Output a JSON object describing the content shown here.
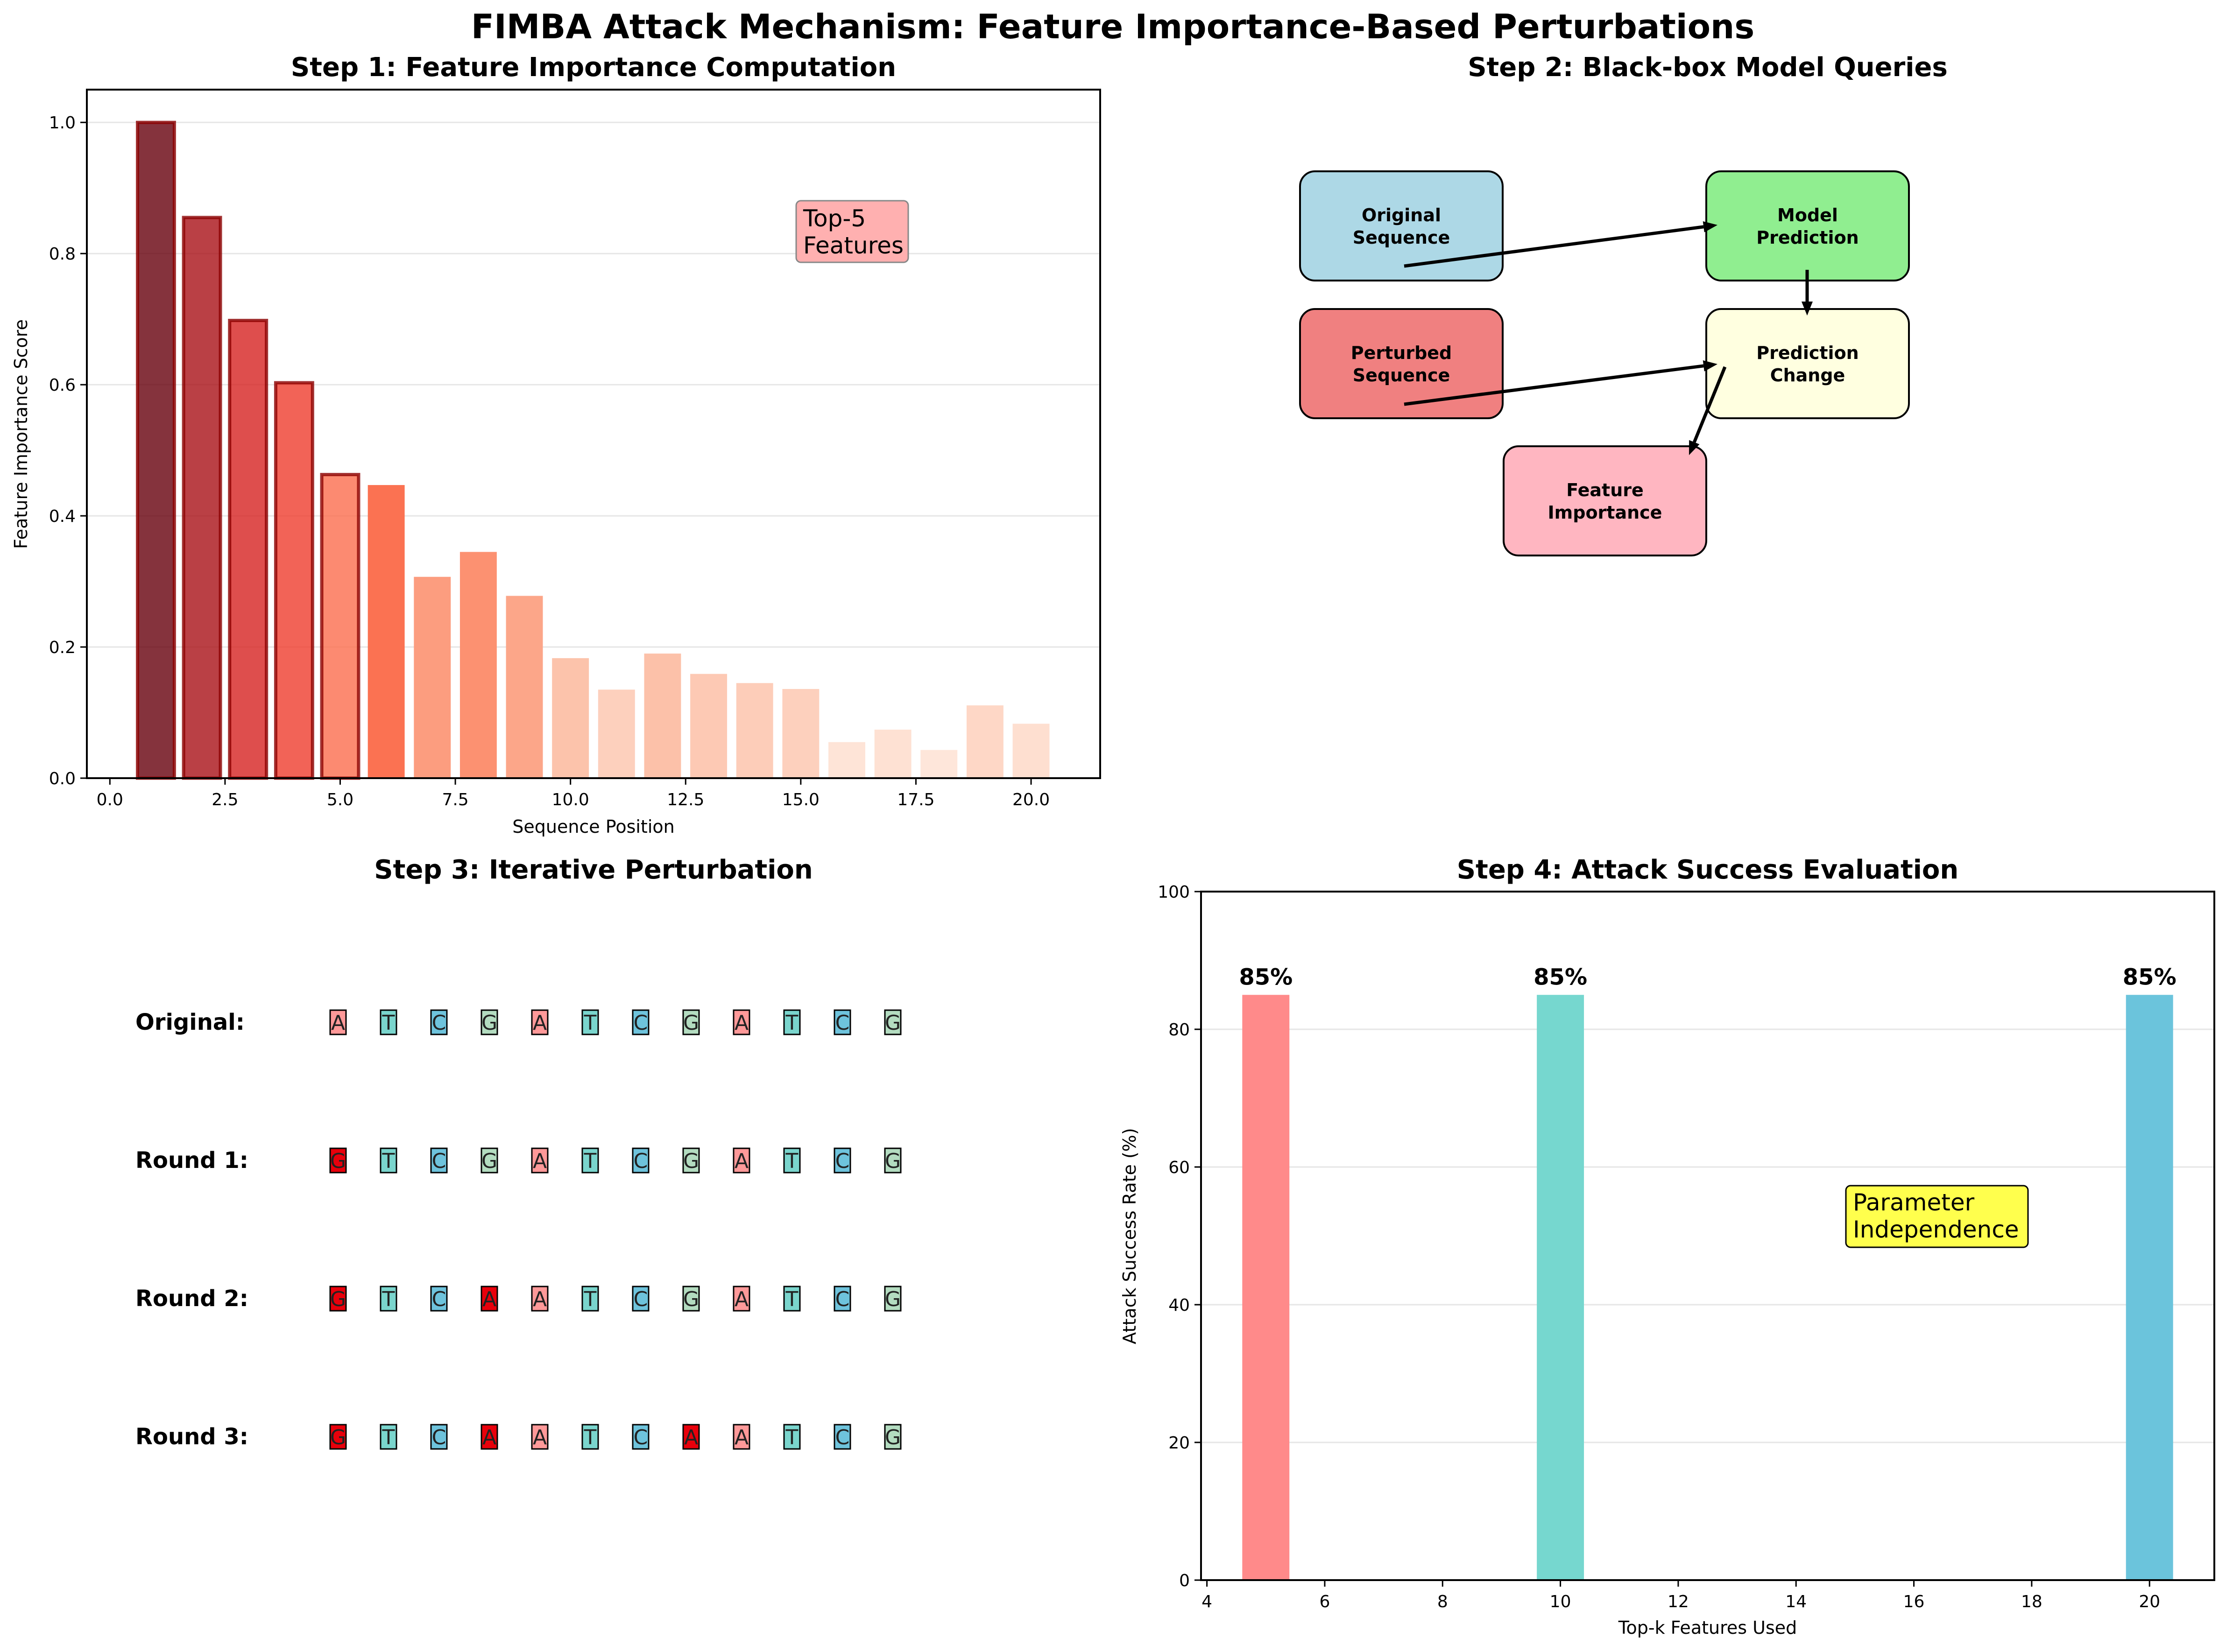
{
  "figure": {
    "title": "FIMBA Attack Mechanism: Feature Importance-Based Perturbations"
  },
  "chart_data": [
    {
      "type": "bar",
      "title": "Step 1: Feature Importance Computation",
      "xlabel": "Sequence Position",
      "ylabel": "Feature Importance Score",
      "xlim": [
        -0.5,
        21.5
      ],
      "ylim": [
        0,
        1.05
      ],
      "xticks": [
        0.0,
        2.5,
        5.0,
        7.5,
        10.0,
        12.5,
        15.0,
        17.5,
        20.0
      ],
      "xtick_labels": [
        "0.0",
        "2.5",
        "5.0",
        "7.5",
        "10.0",
        "12.5",
        "15.0",
        "17.5",
        "20.0"
      ],
      "yticks": [
        0.0,
        0.2,
        0.4,
        0.6,
        0.8,
        1.0
      ],
      "ytick_labels": [
        "0.0",
        "0.2",
        "0.4",
        "0.6",
        "0.8",
        "1.0"
      ],
      "grid": "y",
      "x": [
        1,
        2,
        3,
        4,
        5,
        6,
        7,
        8,
        9,
        10,
        11,
        12,
        13,
        14,
        15,
        16,
        17,
        18,
        19,
        20
      ],
      "values": [
        1.0,
        0.855,
        0.698,
        0.603,
        0.463,
        0.447,
        0.307,
        0.345,
        0.278,
        0.183,
        0.135,
        0.19,
        0.159,
        0.145,
        0.136,
        0.055,
        0.074,
        0.043,
        0.111,
        0.083
      ],
      "highlighted_top_k": 5,
      "colormap": "Reds",
      "annotation": "Top-5\nFeatures"
    },
    {
      "type": "diagram",
      "title": "Step 2: Black-box Model Queries",
      "nodes": [
        {
          "id": "original",
          "label": "Original\nSequence",
          "color": "#add8e6"
        },
        {
          "id": "model",
          "label": "Model\nPrediction",
          "color": "#90ee90"
        },
        {
          "id": "perturbed",
          "label": "Perturbed\nSequence",
          "color": "#f08080"
        },
        {
          "id": "change",
          "label": "Prediction\nChange",
          "color": "#ffffe0"
        },
        {
          "id": "importance",
          "label": "Feature\nImportance",
          "color": "#ffb6c1"
        }
      ],
      "edges": [
        {
          "from": "original",
          "to": "model"
        },
        {
          "from": "model",
          "to": "change"
        },
        {
          "from": "perturbed",
          "to": "change"
        },
        {
          "from": "change",
          "to": "importance"
        }
      ]
    },
    {
      "type": "sequence",
      "title": "Step 3: Iterative Perturbation",
      "base_colors": {
        "A": "#ff9999",
        "T": "#7ad5cd",
        "C": "#6ec3dc",
        "G": "#b3dcc0"
      },
      "perturbed_color": "#e8000b",
      "rows": [
        {
          "label": "Original:",
          "bases": [
            "A",
            "T",
            "C",
            "G",
            "A",
            "T",
            "C",
            "G",
            "A",
            "T",
            "C",
            "G"
          ],
          "perturbed": []
        },
        {
          "label": "Round 1:",
          "bases": [
            "G",
            "T",
            "C",
            "G",
            "A",
            "T",
            "C",
            "G",
            "A",
            "T",
            "C",
            "G"
          ],
          "perturbed": [
            0
          ]
        },
        {
          "label": "Round 2:",
          "bases": [
            "G",
            "T",
            "C",
            "A",
            "A",
            "T",
            "C",
            "G",
            "A",
            "T",
            "C",
            "G"
          ],
          "perturbed": [
            0,
            3
          ]
        },
        {
          "label": "Round 3:",
          "bases": [
            "G",
            "T",
            "C",
            "A",
            "A",
            "T",
            "C",
            "A",
            "A",
            "T",
            "C",
            "G"
          ],
          "perturbed": [
            0,
            3,
            7
          ]
        }
      ]
    },
    {
      "type": "bar",
      "title": "Step 4: Attack Success Evaluation",
      "xlabel": "Top-k Features Used",
      "ylabel": "Attack Success Rate (%)",
      "xlim": [
        3.9,
        21.1
      ],
      "ylim": [
        0,
        100
      ],
      "xticks": [
        4,
        6,
        8,
        10,
        12,
        14,
        16,
        18,
        20
      ],
      "xtick_labels": [
        "4",
        "6",
        "8",
        "10",
        "12",
        "14",
        "16",
        "18",
        "20"
      ],
      "yticks": [
        0,
        20,
        40,
        60,
        80,
        100
      ],
      "ytick_labels": [
        "0",
        "20",
        "40",
        "60",
        "80",
        "100"
      ],
      "grid": "y",
      "x": [
        5,
        10,
        20
      ],
      "values": [
        85,
        85,
        85
      ],
      "data_labels": [
        "85%",
        "85%",
        "85%"
      ],
      "colors": [
        "#ff8a8a",
        "#76d7cf",
        "#6bc4dc"
      ],
      "annotation": "Parameter\nIndependence"
    }
  ]
}
